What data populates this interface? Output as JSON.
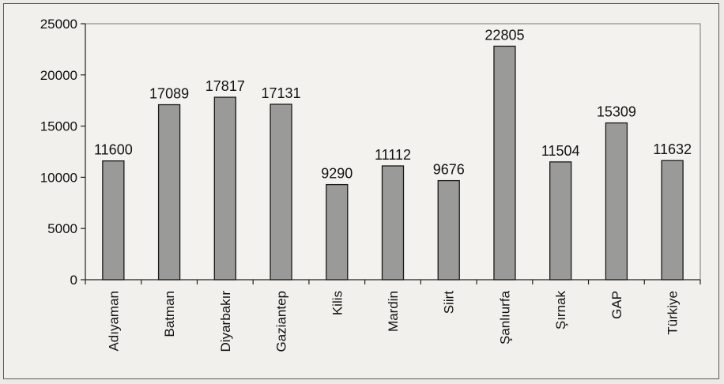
{
  "chart_data": {
    "type": "bar",
    "title": "",
    "xlabel": "",
    "ylabel": "",
    "categories": [
      "Adıyaman",
      "Batman",
      "Diyarbakır",
      "Gaziantep",
      "Kilis",
      "Mardin",
      "Siirt",
      "Şanlıurfa",
      "Şırnak",
      "GAP",
      "Türkiye"
    ],
    "values": [
      11600,
      17089,
      17817,
      17131,
      9290,
      11112,
      9676,
      22805,
      11504,
      15309,
      11632
    ],
    "data_labels": [
      "11600",
      "17089",
      "17817",
      "17131",
      "9290",
      "11112",
      "9676",
      "22805",
      "11504",
      "15309",
      "11632"
    ],
    "ylim": [
      0,
      25000
    ],
    "yticks": [
      0,
      5000,
      10000,
      15000,
      20000,
      25000
    ],
    "ytick_labels": [
      "0",
      "5000",
      "10000",
      "15000",
      "20000",
      "25000"
    ],
    "grid": false,
    "legend": "none",
    "colors": {
      "bar_fill": "#9a9a98",
      "bar_stroke": "#1a1a1a",
      "plot_background": "#f3f2ee",
      "axis": "#222222"
    }
  }
}
